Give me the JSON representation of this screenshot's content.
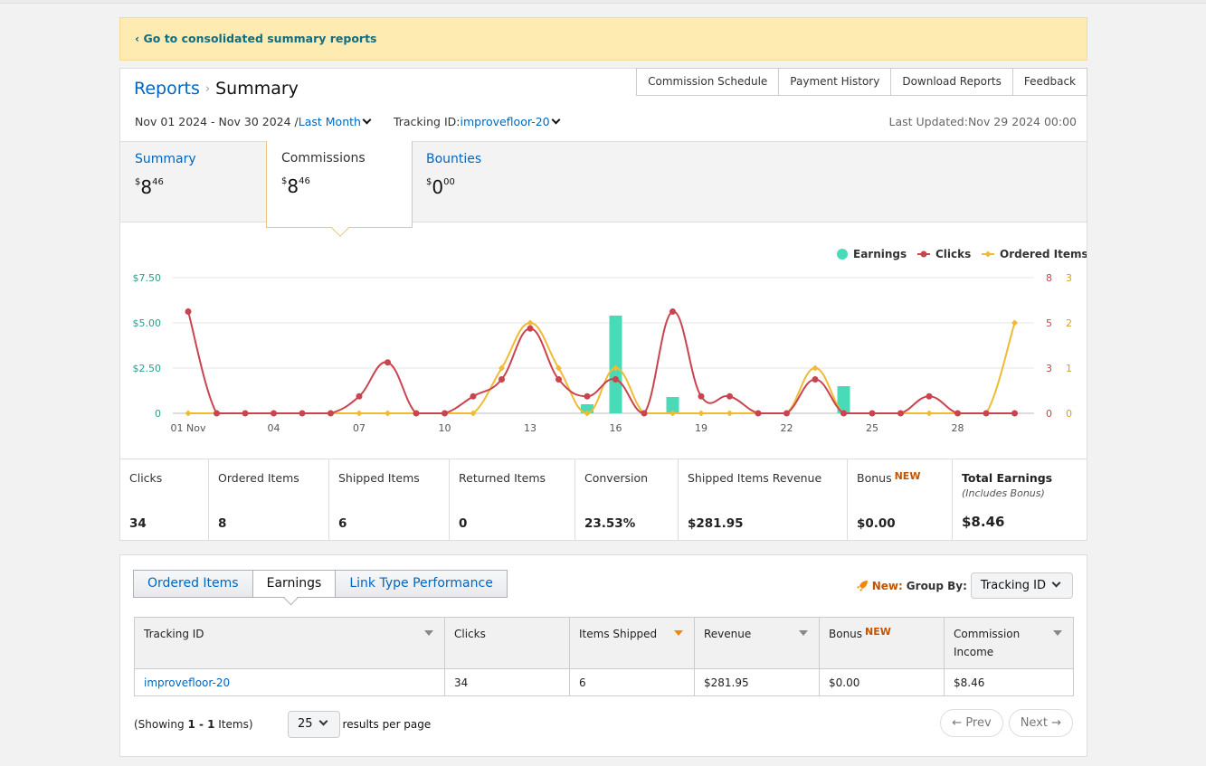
{
  "banner": {
    "link": "‹ Go to consolidated summary reports"
  },
  "header": {
    "breadcrumb_root": "Reports",
    "breadcrumb_sep": "›",
    "breadcrumb_current": "Summary",
    "top_tabs": [
      "Commission Schedule",
      "Payment History",
      "Download Reports",
      "Feedback"
    ],
    "date_range": "Nov 01 2024 - Nov 30 2024 /",
    "period": "Last Month",
    "tracking_label": "Tracking ID:",
    "tracking_id": "improvefloor-20",
    "last_updated": "Last Updated:Nov 29 2024 00:00"
  },
  "tiles": [
    {
      "label": "Summary",
      "dollar": "$",
      "whole": "8",
      "cents": "46"
    },
    {
      "label": "Commissions",
      "dollar": "$",
      "whole": "8",
      "cents": "46"
    },
    {
      "label": "Bounties",
      "dollar": "$",
      "whole": "0",
      "cents": "00"
    }
  ],
  "colors": {
    "earnings": "#49dbb8",
    "clicks": "#c9444f",
    "ordered": "#f0bb33",
    "link": "#0066c0",
    "new": "#c45500"
  },
  "chart_data": {
    "type": "bar+line",
    "legend": [
      "Earnings",
      "Clicks",
      "Ordered Items"
    ],
    "legend_position": "top-right",
    "x": [
      "01 Nov",
      "02",
      "03",
      "04",
      "05",
      "06",
      "07",
      "08",
      "09",
      "10",
      "11",
      "12",
      "13",
      "14",
      "15",
      "16",
      "17",
      "18",
      "19",
      "20",
      "21",
      "22",
      "23",
      "24",
      "25",
      "26",
      "27",
      "28",
      "29",
      "30"
    ],
    "x_tick_labels": [
      "01 Nov",
      "04",
      "07",
      "10",
      "13",
      "16",
      "19",
      "22",
      "25",
      "28"
    ],
    "y_left": {
      "ticks": [
        "$7.50",
        "$5.00",
        "$2.50",
        "0"
      ],
      "range": [
        0,
        7.5
      ]
    },
    "y_right_clicks": {
      "ticks": [
        "8",
        "5",
        "3",
        "0"
      ],
      "range": [
        0,
        8
      ]
    },
    "y_right_ordered": {
      "ticks": [
        "3",
        "2",
        "1",
        "0"
      ],
      "range": [
        0,
        3
      ]
    },
    "series": [
      {
        "name": "Earnings",
        "type": "bar",
        "values": [
          0,
          0,
          0,
          0,
          0,
          0,
          0,
          0,
          0,
          0,
          0,
          0,
          0,
          0,
          0.5,
          5.4,
          0,
          0.9,
          0,
          0,
          0,
          0,
          0,
          1.5,
          0,
          0,
          0,
          0,
          0,
          0
        ]
      },
      {
        "name": "Clicks",
        "type": "line",
        "values": [
          6,
          0,
          0,
          0,
          0,
          0,
          1,
          3,
          0,
          0,
          1,
          2,
          5,
          2,
          1,
          2,
          0,
          6,
          1,
          1,
          0,
          0,
          2,
          0,
          0,
          0,
          1,
          0,
          0,
          0
        ]
      },
      {
        "name": "Ordered Items",
        "type": "line",
        "values": [
          0,
          0,
          0,
          0,
          0,
          0,
          0,
          0,
          0,
          0,
          0,
          1,
          2,
          1,
          0,
          1,
          0,
          0,
          0,
          0,
          0,
          0,
          1,
          0,
          0,
          0,
          0,
          0,
          0,
          2
        ]
      }
    ]
  },
  "stats": [
    {
      "label": "Clicks",
      "value": "34"
    },
    {
      "label": "Ordered Items",
      "value": "8"
    },
    {
      "label": "Shipped Items",
      "value": "6"
    },
    {
      "label": "Returned Items",
      "value": "0"
    },
    {
      "label": "Conversion",
      "value": "23.53%"
    },
    {
      "label": "Shipped Items Revenue",
      "value": "$281.95"
    },
    {
      "label": "Bonus",
      "badge": "NEW",
      "value": "$0.00"
    },
    {
      "label": "Total Earnings",
      "note": "(Includes Bonus)",
      "value": "$8.46"
    }
  ],
  "report": {
    "tabs": [
      "Ordered Items",
      "Earnings",
      "Link Type Performance"
    ],
    "new_label": "New:",
    "group_by_label": "Group By:",
    "group_by_value": "Tracking ID",
    "columns": [
      "Tracking ID",
      "Clicks",
      "Items Shipped",
      "Revenue",
      "Bonus",
      "Commission Income"
    ],
    "bonus_badge": "NEW",
    "rows": [
      [
        "improvefloor-20",
        "34",
        "6",
        "$281.95",
        "$0.00",
        "$8.46"
      ]
    ],
    "showing_prefix": "(Showing ",
    "showing_range": "1 - 1",
    "showing_suffix": " Items)",
    "per_page_value": "25",
    "per_page_label": "results per page",
    "prev": "← Prev",
    "next": "Next →"
  }
}
